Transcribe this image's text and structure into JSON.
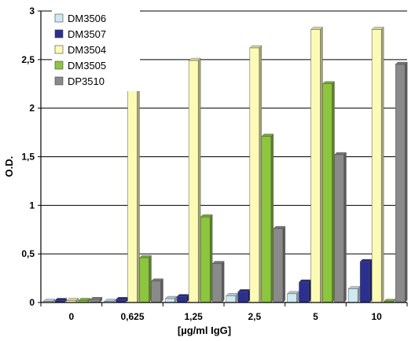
{
  "chart_data": {
    "type": "bar",
    "title": "",
    "xlabel": "[µg/ml IgG]",
    "ylabel": "O.D.",
    "ylim": [
      0,
      3
    ],
    "yticks": [
      "0",
      "0,5",
      "1",
      "1,5",
      "2",
      "2,5",
      "3"
    ],
    "grid": true,
    "legend_position": "top-left",
    "categories": [
      "0",
      "0,625",
      "1,25",
      "2,5",
      "5",
      "10"
    ],
    "series": [
      {
        "name": "DM3506",
        "color": "#cfe9f2",
        "values": [
          0.01,
          0.01,
          0.04,
          0.07,
          0.09,
          0.14
        ]
      },
      {
        "name": "DM3507",
        "color": "#2b2f8f",
        "values": [
          0.02,
          0.03,
          0.06,
          0.11,
          0.21,
          0.42
        ]
      },
      {
        "name": "DM3504",
        "color": "#fbfbb6",
        "values": [
          0.02,
          2.27,
          2.49,
          2.62,
          2.81,
          2.81
        ]
      },
      {
        "name": "DM3505",
        "color": "#8cc63e",
        "values": [
          0.02,
          0.46,
          0.88,
          1.71,
          2.25,
          0.01
        ]
      },
      {
        "name": "DP3510",
        "color": "#8a8a8a",
        "values": [
          0.03,
          0.22,
          0.4,
          0.76,
          1.52,
          2.45
        ]
      }
    ]
  }
}
